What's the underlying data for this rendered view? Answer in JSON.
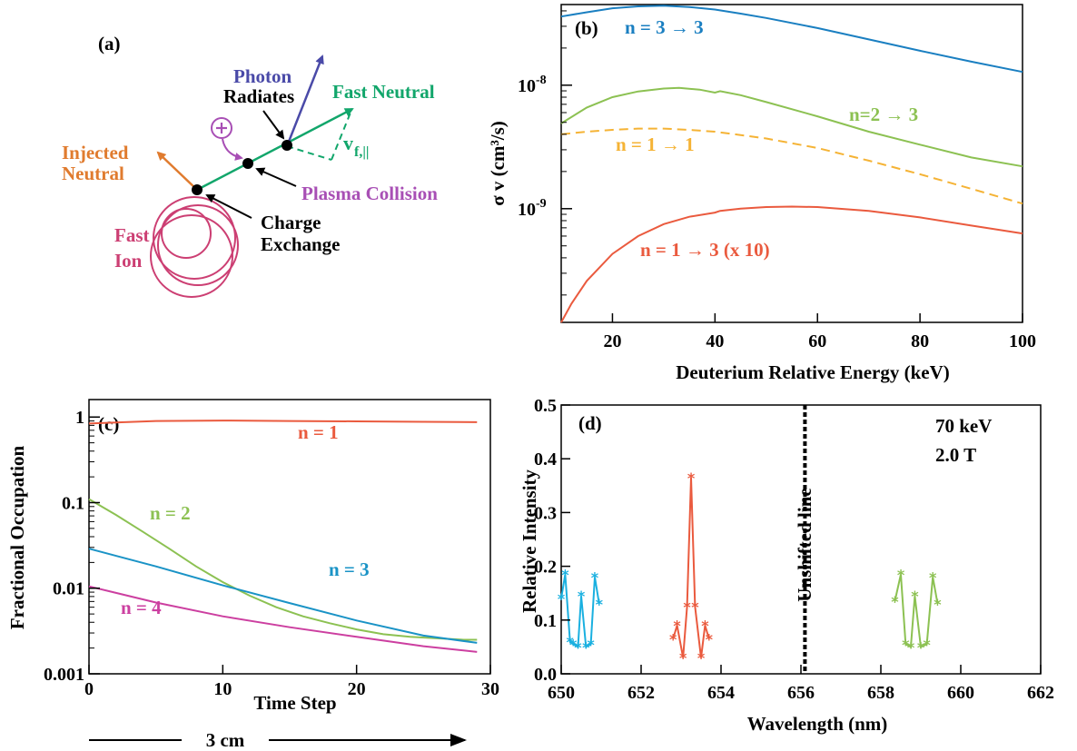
{
  "panel_a": {
    "label": "(a)",
    "labels": {
      "photon": "Photon",
      "fast_neutral": "Fast Neutral",
      "radiates": "Radiates",
      "injected_l1": "Injected",
      "injected_l2": "Neutral",
      "vpar_main": "v",
      "vpar_sub": "f,||",
      "plasma_collision": "Plasma Collision",
      "charge_l1": "Charge",
      "charge_l2": "Exchange",
      "fastion_l1": "Fast",
      "fastion_l2": "Ion",
      "plus": "+"
    },
    "scalebar": "3 cm",
    "colors": {
      "photon": "#4a4aa8",
      "neutral": "#12a66b",
      "injected": "#e07b2e",
      "plasma": "#a84fb5",
      "ion": "#cc3f73"
    }
  },
  "chart_data": [
    {
      "panel": "(b)",
      "type": "line",
      "xlabel": "Deuterium Relative Energy (keV)",
      "ylabel": "σ v (cm³/s)",
      "xlim": [
        10,
        100
      ],
      "ylim": [
        1.2e-10,
        4.5e-08
      ],
      "yscale": "log",
      "xticks": [
        20,
        40,
        60,
        80,
        100
      ],
      "yticks": [
        {
          "value": 1e-08,
          "base": "10",
          "exp": "-8"
        },
        {
          "value": 1e-09,
          "base": "10",
          "exp": "-9"
        }
      ],
      "series": [
        {
          "name": "n = 3 → 3",
          "color": "#1a7fc1",
          "dash": false,
          "x": [
            10,
            15,
            20,
            25,
            30,
            35,
            40,
            45,
            50,
            60,
            70,
            80,
            90,
            100
          ],
          "y": [
            3.6e-08,
            3.9e-08,
            4.2e-08,
            4.35e-08,
            4.4e-08,
            4.3e-08,
            4.1e-08,
            3.8e-08,
            3.5e-08,
            2.9e-08,
            2.35e-08,
            1.9e-08,
            1.55e-08,
            1.28e-08
          ]
        },
        {
          "name": "n=2 → 3",
          "color": "#8cc152",
          "dash": false,
          "x": [
            10,
            15,
            20,
            25,
            30,
            33,
            37,
            40,
            41,
            45,
            50,
            60,
            70,
            80,
            90,
            100
          ],
          "y": [
            4.9e-09,
            6.6e-09,
            8e-09,
            8.9e-09,
            9.4e-09,
            9.5e-09,
            9.2e-09,
            8.7e-09,
            8.95e-09,
            8.3e-09,
            7.3e-09,
            5.6e-09,
            4.2e-09,
            3.3e-09,
            2.6e-09,
            2.2e-09
          ]
        },
        {
          "name": "n = 1 → 1",
          "color": "#f5b335",
          "dash": true,
          "x": [
            10,
            15,
            20,
            25,
            30,
            35,
            40,
            45,
            50,
            60,
            70,
            80,
            90,
            100
          ],
          "y": [
            4e-09,
            4.2e-09,
            4.35e-09,
            4.45e-09,
            4.45e-09,
            4.35e-09,
            4.2e-09,
            3.95e-09,
            3.7e-09,
            3.1e-09,
            2.45e-09,
            1.9e-09,
            1.45e-09,
            1.1e-09
          ]
        },
        {
          "name": "n = 1 → 3 (x 10)",
          "color": "#ea5a3e",
          "dash": false,
          "x": [
            10,
            12,
            15,
            20,
            25,
            30,
            35,
            40,
            41,
            45,
            50,
            55,
            60,
            70,
            80,
            90,
            100
          ],
          "y": [
            1.2e-10,
            1.7e-10,
            2.6e-10,
            4.3e-10,
            6e-10,
            7.5e-10,
            8.6e-10,
            9.3e-10,
            9.6e-10,
            1e-09,
            1.03e-09,
            1.04e-09,
            1.03e-09,
            9.6e-10,
            8.5e-10,
            7.3e-10,
            6.3e-10
          ]
        }
      ]
    },
    {
      "panel": "(c)",
      "type": "line",
      "xlabel": "Time Step",
      "ylabel": "Fractional Occupation",
      "xlim": [
        0,
        30
      ],
      "ylim": [
        0.001,
        1.6
      ],
      "yscale": "log",
      "xticks": [
        0,
        10,
        20,
        30
      ],
      "yticks": [
        {
          "value": 1,
          "label": "1"
        },
        {
          "value": 0.1,
          "label": "0.1"
        },
        {
          "value": 0.01,
          "label": "0.01"
        },
        {
          "value": 0.001,
          "label": "0.001"
        }
      ],
      "series": [
        {
          "name": "n = 1",
          "color": "#ea5a3e",
          "x": [
            0,
            5,
            10,
            15,
            20,
            25,
            29
          ],
          "y": [
            0.84,
            0.9,
            0.91,
            0.9,
            0.89,
            0.88,
            0.87
          ]
        },
        {
          "name": "n = 2",
          "color": "#8cc152",
          "x": [
            0,
            2,
            4,
            6,
            8,
            10,
            12,
            14,
            16,
            18,
            20,
            22,
            24,
            26,
            28,
            29
          ],
          "y": [
            0.11,
            0.072,
            0.046,
            0.029,
            0.018,
            0.0118,
            0.0082,
            0.006,
            0.0047,
            0.0039,
            0.0033,
            0.0029,
            0.0027,
            0.0026,
            0.0025,
            0.0025
          ]
        },
        {
          "name": "n = 3",
          "color": "#1a93c6",
          "x": [
            0,
            5,
            10,
            15,
            20,
            25,
            29
          ],
          "y": [
            0.029,
            0.018,
            0.0108,
            0.0067,
            0.0042,
            0.0028,
            0.0023
          ]
        },
        {
          "name": "n = 4",
          "color": "#cc3fa0",
          "x": [
            0,
            5,
            10,
            15,
            20,
            25,
            29
          ],
          "y": [
            0.0105,
            0.0068,
            0.0047,
            0.0035,
            0.0027,
            0.0021,
            0.0018
          ]
        }
      ]
    },
    {
      "panel": "(d)",
      "type": "line",
      "xlabel": "Wavelength (nm)",
      "ylabel": "Relative Intensity",
      "xlim": [
        650,
        662
      ],
      "ylim": [
        0,
        0.5
      ],
      "xticks": [
        650,
        652,
        654,
        656,
        658,
        660,
        662
      ],
      "yticks": [
        0.0,
        0.1,
        0.2,
        0.3,
        0.4,
        0.5
      ],
      "unshifted_line": 656.1,
      "unshifted_label": "Unshifted line",
      "annotations": [
        "70 keV",
        "2.0 T"
      ],
      "series": [
        {
          "name": "",
          "color": "#1ab0e0",
          "x": [
            650.0,
            650.1,
            650.22,
            650.3,
            650.42,
            650.5,
            650.62,
            650.74,
            650.84,
            650.95
          ],
          "y": [
            0.14,
            0.185,
            0.06,
            0.055,
            0.05,
            0.145,
            0.05,
            0.055,
            0.18,
            0.13
          ]
        },
        {
          "name": "",
          "color": "#ea5a3e",
          "x": [
            652.8,
            652.9,
            653.05,
            653.15,
            653.25,
            653.35,
            653.5,
            653.6,
            653.7
          ],
          "y": [
            0.065,
            0.09,
            0.03,
            0.125,
            0.365,
            0.125,
            0.03,
            0.09,
            0.065
          ]
        },
        {
          "name": "",
          "color": "#8cc152",
          "x": [
            658.35,
            658.5,
            658.62,
            658.75,
            658.85,
            659.0,
            659.15,
            659.3,
            659.42
          ],
          "y": [
            0.135,
            0.185,
            0.055,
            0.05,
            0.145,
            0.05,
            0.055,
            0.18,
            0.13
          ]
        }
      ]
    }
  ]
}
